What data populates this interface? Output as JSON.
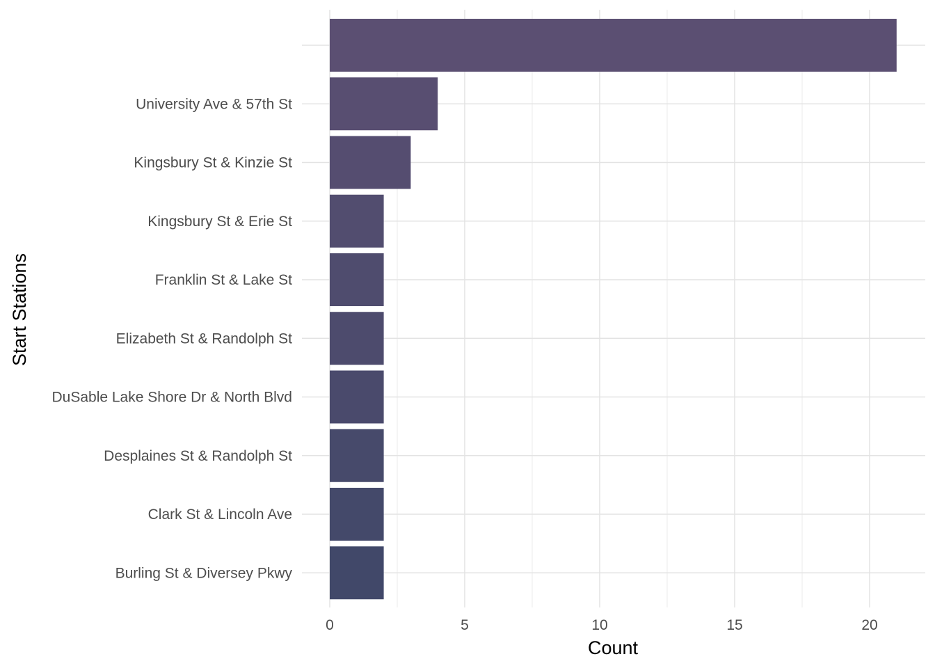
{
  "chart_data": {
    "type": "bar",
    "orientation": "horizontal",
    "xlabel": "Count",
    "ylabel": "Start Stations",
    "xlim": [
      0,
      22
    ],
    "x_ticks": [
      0,
      5,
      10,
      15,
      20
    ],
    "grid": true,
    "legend": "none",
    "bar_color_top": "#5b4f72",
    "bar_color_bottom": "#414869",
    "categories": [
      "",
      "University Ave & 57th St",
      "Kingsbury St & Kinzie St",
      "Kingsbury St & Erie St",
      "Franklin St & Lake St",
      "Elizabeth St & Randolph St",
      "DuSable Lake Shore Dr & North Blvd",
      "Desplaines St & Randolph St",
      "Clark St & Lincoln Ave",
      "Burling St & Diversey Pkwy"
    ],
    "values": [
      21,
      4,
      3,
      2,
      2,
      2,
      2,
      2,
      2,
      2
    ]
  }
}
